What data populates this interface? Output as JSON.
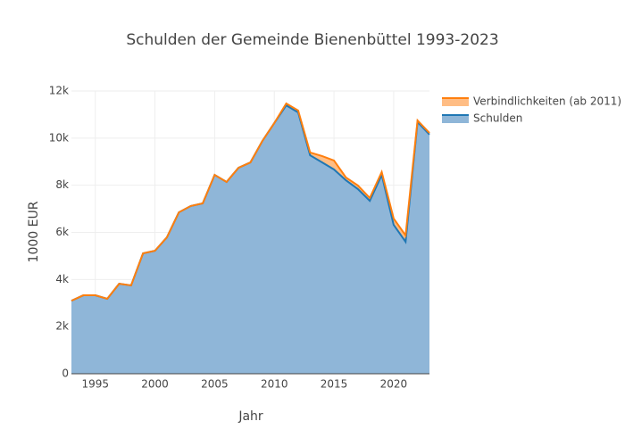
{
  "chart_data": {
    "type": "area",
    "title": "Schulden der Gemeinde Bienenbüttel 1993-2023",
    "x_label": "Jahr",
    "y_label": "1000 EUR",
    "x": [
      1993,
      1994,
      1995,
      1996,
      1997,
      1998,
      1999,
      2000,
      2001,
      2002,
      2003,
      2004,
      2005,
      2006,
      2007,
      2008,
      2009,
      2010,
      2011,
      2012,
      2013,
      2014,
      2015,
      2016,
      2017,
      2018,
      2019,
      2020,
      2021,
      2022,
      2023
    ],
    "series": [
      {
        "name": "Verbindlichkeiten (ab 2011)",
        "color": "#ff7f0e",
        "values": [
          3100,
          3330,
          3330,
          3180,
          3820,
          3750,
          5110,
          5220,
          5790,
          6850,
          7120,
          7230,
          8440,
          8140,
          8740,
          8970,
          9880,
          10640,
          11470,
          11170,
          9390,
          9240,
          9050,
          8330,
          7990,
          7460,
          8560,
          6590,
          5870,
          10750,
          10220
        ]
      },
      {
        "name": "Schulden",
        "color": "#1f77b4",
        "values": [
          3100,
          3330,
          3330,
          3180,
          3820,
          3750,
          5110,
          5220,
          5790,
          6850,
          7120,
          7230,
          8440,
          8140,
          8740,
          8970,
          9880,
          10640,
          11390,
          11090,
          9270,
          8970,
          8670,
          8210,
          7840,
          7340,
          8440,
          6320,
          5600,
          10680,
          10150
        ]
      }
    ],
    "xlim": [
      1993,
      2023
    ],
    "xticks": [
      1995,
      2000,
      2005,
      2010,
      2015,
      2020
    ],
    "ylim": [
      0,
      12000
    ],
    "yticks": [
      0,
      {
        "value": 2000,
        "label": "2k"
      },
      {
        "value": 4000,
        "label": "4k"
      },
      {
        "value": 6000,
        "label": "6k"
      },
      {
        "value": 8000,
        "label": "8k"
      },
      {
        "value": 10000,
        "label": "10k"
      },
      {
        "value": 12000,
        "label": "12k"
      }
    ],
    "grid": true
  }
}
